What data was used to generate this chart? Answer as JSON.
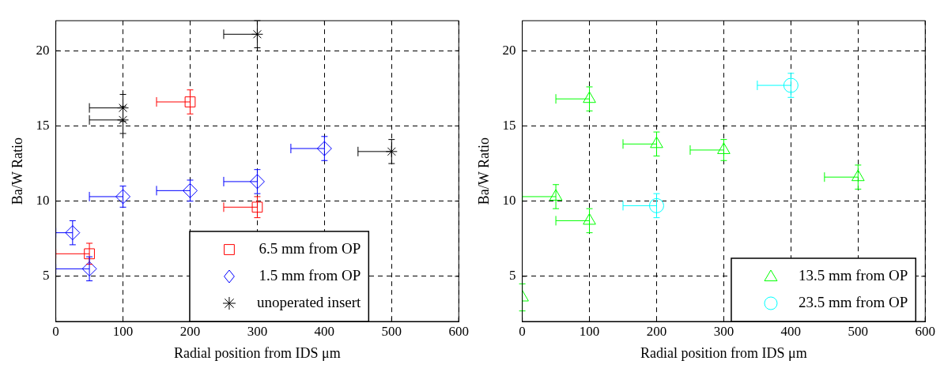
{
  "chart_data": [
    {
      "type": "scatter",
      "xlabel": "Radial position from IDS μm",
      "ylabel": "Ba/W Ratio",
      "xlim": [
        0,
        600
      ],
      "xticks": [
        0,
        100,
        200,
        300,
        400,
        500,
        600
      ],
      "ylim": [
        2,
        22
      ],
      "yticks": [
        5,
        10,
        15,
        20
      ],
      "grid": true,
      "legend": "bottom right",
      "series": [
        {
          "name": "6.5 mm from OP",
          "color": "#ff0000",
          "marker": "square",
          "x": [
            50,
            200,
            300
          ],
          "values": [
            6.5,
            16.6,
            9.6
          ],
          "errors": [
            0.7,
            0.8,
            0.7
          ],
          "xerrors": [
            [
              0,
              50
            ],
            [
              150,
              200
            ],
            [
              250,
              300
            ]
          ]
        },
        {
          "name": "1.5 mm from OP",
          "color": "#0000ff",
          "marker": "diamond",
          "x": [
            25,
            50,
            100,
            200,
            300,
            400
          ],
          "values": [
            7.9,
            5.5,
            10.3,
            10.7,
            11.3,
            13.5
          ],
          "errors": [
            0.8,
            0.8,
            0.7,
            0.7,
            0.8,
            0.8
          ],
          "xerrors": [
            [
              0,
              25
            ],
            [
              0,
              50
            ],
            [
              50,
              100
            ],
            [
              150,
              200
            ],
            [
              250,
              300
            ],
            [
              350,
              400
            ]
          ]
        },
        {
          "name": "unoperated insert",
          "color": "#000000",
          "marker": "cross",
          "x": [
            100,
            100,
            300,
            500
          ],
          "values": [
            16.2,
            15.4,
            21.1,
            13.3
          ],
          "errors": [
            0.9,
            0.9,
            0.9,
            0.8
          ],
          "xerrors": [
            [
              50,
              100
            ],
            [
              50,
              100
            ],
            [
              250,
              300
            ],
            [
              450,
              500
            ]
          ]
        }
      ]
    },
    {
      "type": "scatter",
      "xlabel": "Radial position from IDS μm",
      "ylabel": "Ba/W Ratio",
      "xlim": [
        0,
        600
      ],
      "xticks": [
        0,
        100,
        200,
        300,
        400,
        500,
        600
      ],
      "ylim": [
        2,
        22
      ],
      "yticks": [
        5,
        10,
        15,
        20
      ],
      "grid": true,
      "legend": "bottom right",
      "series": [
        {
          "name": "13.5 mm from OP",
          "color": "#00ff00",
          "marker": "triangle",
          "x": [
            0,
            50,
            100,
            100,
            200,
            300,
            500
          ],
          "values": [
            3.6,
            10.3,
            16.8,
            8.7,
            13.8,
            13.4,
            11.6
          ],
          "errors": [
            0.9,
            0.8,
            0.8,
            0.8,
            0.8,
            0.7,
            0.8
          ],
          "xerrors": [
            null,
            [
              0,
              50
            ],
            [
              50,
              100
            ],
            [
              50,
              100
            ],
            [
              150,
              200
            ],
            [
              250,
              300
            ],
            [
              450,
              500
            ]
          ]
        },
        {
          "name": "23.5 mm from OP",
          "color": "#00ffff",
          "marker": "circle",
          "x": [
            200,
            400
          ],
          "values": [
            9.7,
            17.7
          ],
          "errors": [
            0.8,
            0.8
          ],
          "xerrors": [
            [
              150,
              200
            ],
            [
              350,
              400
            ]
          ]
        }
      ]
    }
  ]
}
